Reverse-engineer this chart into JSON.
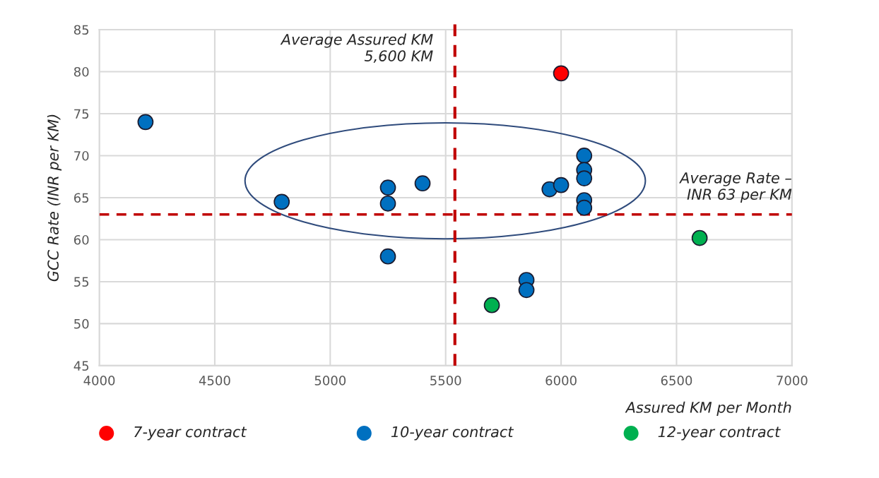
{
  "chart_data": {
    "type": "scatter",
    "xlabel": "Assured KM per Month",
    "ylabel": "GCC Rate (INR per KM)",
    "series": [
      {
        "name": "7-year contract",
        "color": "#ff0000",
        "x": [
          6000
        ],
        "values": [
          79.8
        ]
      },
      {
        "name": "10-year contract",
        "color": "#0070c0",
        "x": [
          4200,
          4790,
          5250,
          5250,
          5250,
          5400,
          5950,
          6000,
          6100,
          6100,
          6100,
          6100,
          6100,
          5850,
          5850
        ],
        "values": [
          74,
          64.5,
          66.2,
          64.3,
          58,
          66.7,
          66,
          66.5,
          70,
          68.3,
          67.3,
          64.7,
          63.8,
          55.2,
          54
        ]
      },
      {
        "name": "12-year contract",
        "color": "#00b050",
        "x": [
          5700,
          6600
        ],
        "values": [
          52.2,
          60.2
        ]
      }
    ],
    "xlim": [
      4000,
      7000
    ],
    "xticks": [
      4000,
      4500,
      5000,
      5500,
      6000,
      6500,
      7000
    ],
    "ylim": [
      45,
      85
    ],
    "yticks": [
      45,
      50,
      55,
      60,
      65,
      70,
      75,
      80,
      85
    ],
    "ref_lines": [
      {
        "axis": "x",
        "value": 5540,
        "label": "Average Assured KM\n5,600 KM",
        "color": "#c00000",
        "line_style": "dashed"
      },
      {
        "axis": "y",
        "value": 63,
        "label": "Average Rate –\nINR 63 per KM",
        "color": "#c00000",
        "line_style": "dashed"
      }
    ],
    "grid": true,
    "legend": "bottom",
    "marker": "circle"
  }
}
